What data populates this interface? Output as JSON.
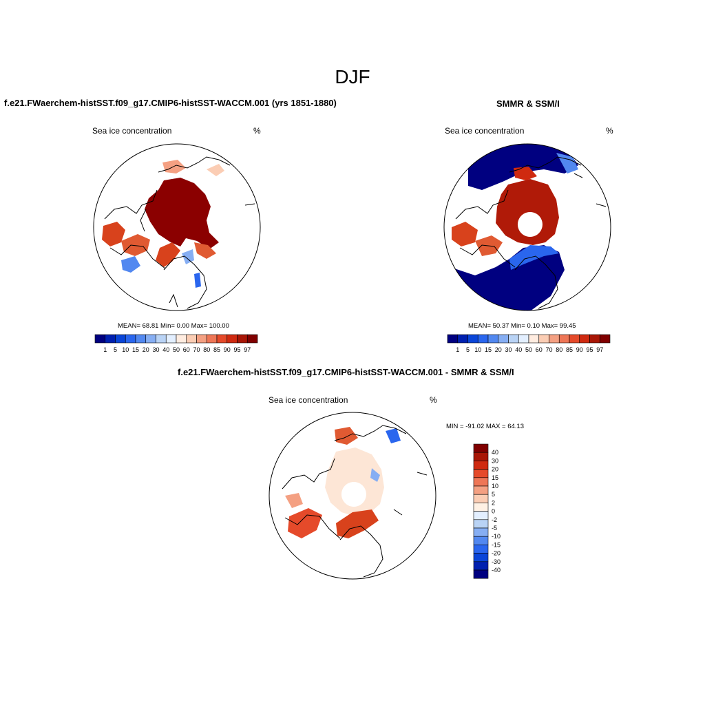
{
  "figure": {
    "main_title": "DJF",
    "panels": [
      {
        "title": "f.e21.FWaerchem-histSST.f09_g17.CMIP6-histSST-WACCM.001 (yrs 1851-1880)",
        "left_label": "Sea ice concentration",
        "right_label": "%",
        "stats": "MEAN=  68.81  Min=   0.00  Max= 100.00"
      },
      {
        "title": "SMMR & SSM/I",
        "left_label": "Sea ice concentration",
        "right_label": "%",
        "stats": "MEAN=  50.37  Min=   0.10  Max=  99.45"
      },
      {
        "title": "f.e21.FWaerchem-histSST.f09_g17.CMIP6-histSST-WACCM.001 - SMMR & SSM/I",
        "left_label": "Sea ice concentration",
        "right_label": "%",
        "stats": "MIN = -91.02 MAX =  64.13"
      }
    ],
    "abs_colorbar": {
      "labels": [
        "1",
        "5",
        "10",
        "15",
        "20",
        "30",
        "40",
        "50",
        "60",
        "70",
        "80",
        "85",
        "90",
        "95",
        "97"
      ],
      "colors": [
        "#000080",
        "#0020b0",
        "#0a45d8",
        "#2a66ee",
        "#5288f0",
        "#86aef3",
        "#b9d3f5",
        "#e3efff",
        "#ffece0",
        "#fbcdb4",
        "#f4a082",
        "#ee7656",
        "#e54a2a",
        "#cf2a10",
        "#a81606",
        "#800000"
      ]
    },
    "diff_colorbar": {
      "labels": [
        "40",
        "30",
        "20",
        "15",
        "10",
        "5",
        "2",
        "0",
        "-2",
        "-5",
        "-10",
        "-15",
        "-20",
        "-30",
        "-40"
      ],
      "colors": [
        "#800000",
        "#a81606",
        "#cf2a10",
        "#e54a2a",
        "#ee7656",
        "#f4a082",
        "#fbcdb4",
        "#fff1e4",
        "#e3efff",
        "#b9d3f5",
        "#86aef3",
        "#5288f0",
        "#2a66ee",
        "#0a45d8",
        "#0020b0",
        "#000080"
      ]
    }
  }
}
